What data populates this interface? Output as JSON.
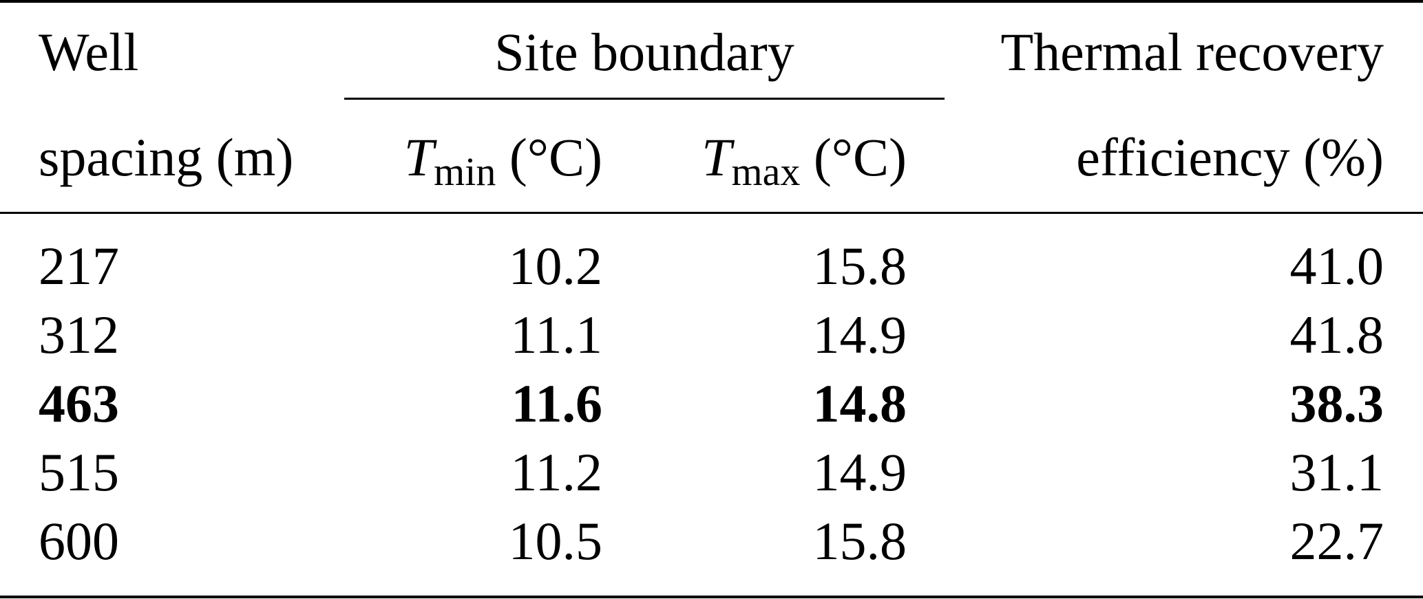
{
  "header": {
    "col1_line1": "Well",
    "col1_line2": "spacing (m)",
    "group_label": "Site boundary",
    "tmin_symbol": "T",
    "tmin_sub": "min",
    "tmin_unit": " (°C)",
    "tmax_symbol": "T",
    "tmax_sub": "max",
    "tmax_unit": " (°C)",
    "col4_line1": "Thermal recovery",
    "col4_line2": "efficiency (%)"
  },
  "rows": [
    {
      "spacing": "217",
      "tmin": "10.2",
      "tmax": "15.8",
      "efficiency": "41.0",
      "bold": false
    },
    {
      "spacing": "312",
      "tmin": "11.1",
      "tmax": "14.9",
      "efficiency": "41.8",
      "bold": false
    },
    {
      "spacing": "463",
      "tmin": "11.6",
      "tmax": "14.8",
      "efficiency": "38.3",
      "bold": true
    },
    {
      "spacing": "515",
      "tmin": "11.2",
      "tmax": "14.9",
      "efficiency": "31.1",
      "bold": false
    },
    {
      "spacing": "600",
      "tmin": "10.5",
      "tmax": "15.8",
      "efficiency": "22.7",
      "bold": false
    }
  ]
}
